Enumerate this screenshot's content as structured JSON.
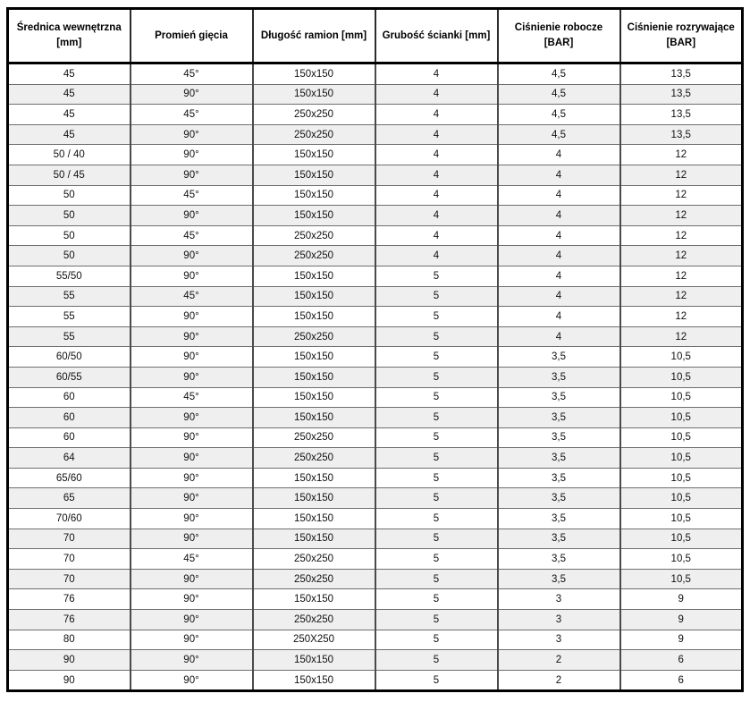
{
  "meta": {
    "description_label": "Specification table for hydraulic pipe elbows (Polish)",
    "colors": {
      "alt_row_background": "#efefef",
      "outer_border": "#000000",
      "inner_border": "#6e6e6e",
      "text": "#111111"
    }
  },
  "table": {
    "headers": [
      {
        "line1": "Średnica wewnętrzna",
        "line2": "[mm]"
      },
      {
        "line1": "Promień gięcia",
        "line2": ""
      },
      {
        "line1": "Długość ramion [mm]",
        "line2": ""
      },
      {
        "line1": "Grubość ścianki [mm]",
        "line2": ""
      },
      {
        "line1": "Ciśnienie robocze",
        "line2": "[BAR]"
      },
      {
        "line1": "Ciśnienie rozrywające",
        "line2": "[BAR]"
      }
    ],
    "rows": [
      [
        "45",
        "45°",
        "150x150",
        "4",
        "4,5",
        "13,5"
      ],
      [
        "45",
        "90°",
        "150x150",
        "4",
        "4,5",
        "13,5"
      ],
      [
        "45",
        "45°",
        "250x250",
        "4",
        "4,5",
        "13,5"
      ],
      [
        "45",
        "90°",
        "250x250",
        "4",
        "4,5",
        "13,5"
      ],
      [
        "50 / 40",
        "90°",
        "150x150",
        "4",
        "4",
        "12"
      ],
      [
        "50 / 45",
        "90°",
        "150x150",
        "4",
        "4",
        "12"
      ],
      [
        "50",
        "45°",
        "150x150",
        "4",
        "4",
        "12"
      ],
      [
        "50",
        "90°",
        "150x150",
        "4",
        "4",
        "12"
      ],
      [
        "50",
        "45°",
        "250x250",
        "4",
        "4",
        "12"
      ],
      [
        "50",
        "90°",
        "250x250",
        "4",
        "4",
        "12"
      ],
      [
        "55/50",
        "90°",
        "150x150",
        "5",
        "4",
        "12"
      ],
      [
        "55",
        "45°",
        "150x150",
        "5",
        "4",
        "12"
      ],
      [
        "55",
        "90°",
        "150x150",
        "5",
        "4",
        "12"
      ],
      [
        "55",
        "90°",
        "250x250",
        "5",
        "4",
        "12"
      ],
      [
        "60/50",
        "90°",
        "150x150",
        "5",
        "3,5",
        "10,5"
      ],
      [
        "60/55",
        "90°",
        "150x150",
        "5",
        "3,5",
        "10,5"
      ],
      [
        "60",
        "45°",
        "150x150",
        "5",
        "3,5",
        "10,5"
      ],
      [
        "60",
        "90°",
        "150x150",
        "5",
        "3,5",
        "10,5"
      ],
      [
        "60",
        "90°",
        "250x250",
        "5",
        "3,5",
        "10,5"
      ],
      [
        "64",
        "90°",
        "250x250",
        "5",
        "3,5",
        "10,5"
      ],
      [
        "65/60",
        "90°",
        "150x150",
        "5",
        "3,5",
        "10,5"
      ],
      [
        "65",
        "90°",
        "150x150",
        "5",
        "3,5",
        "10,5"
      ],
      [
        "70/60",
        "90°",
        "150x150",
        "5",
        "3,5",
        "10,5"
      ],
      [
        "70",
        "90°",
        "150x150",
        "5",
        "3,5",
        "10,5"
      ],
      [
        "70",
        "45°",
        "250x250",
        "5",
        "3,5",
        "10,5"
      ],
      [
        "70",
        "90°",
        "250x250",
        "5",
        "3,5",
        "10,5"
      ],
      [
        "76",
        "90°",
        "150x150",
        "5",
        "3",
        "9"
      ],
      [
        "76",
        "90°",
        "250x250",
        "5",
        "3",
        "9"
      ],
      [
        "80",
        "90°",
        "250X250",
        "5",
        "3",
        "9"
      ],
      [
        "90",
        "90°",
        "150x150",
        "5",
        "2",
        "6"
      ],
      [
        "90",
        "90°",
        "150x150",
        "5",
        "2",
        "6"
      ]
    ]
  }
}
